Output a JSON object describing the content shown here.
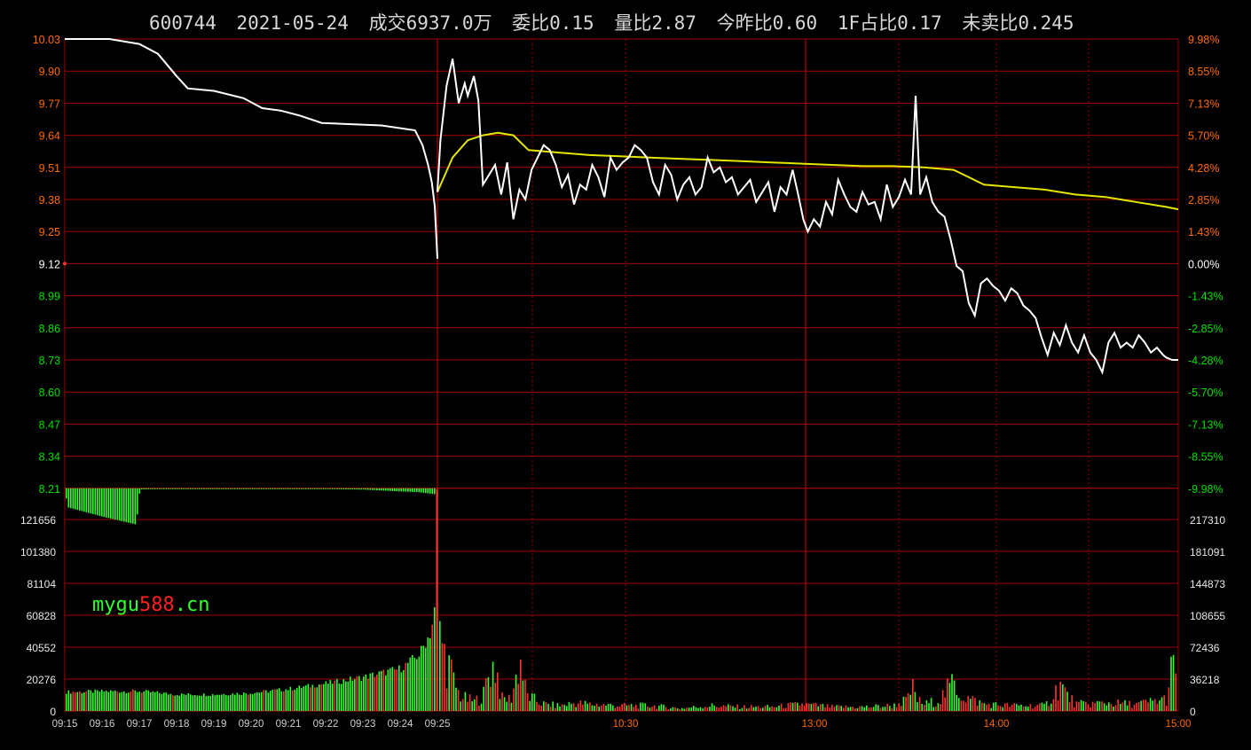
{
  "header": {
    "code": "600744",
    "date": "2021-05-24",
    "turnover": "成交6937.0万",
    "commission_ratio": "委比0.15",
    "volume_ratio": "量比2.87",
    "today_vs_yesterday": "今昨比0.60",
    "first_share": "1F占比0.17",
    "unsold_ratio": "未卖比0.245"
  },
  "watermark": {
    "part1": "mygu",
    "part2": "588",
    "part3": ".cn"
  },
  "colors": {
    "background": "#000000",
    "grid": "#a00000",
    "price_line": "#ffffff",
    "avg_line": "#e6e600",
    "up": "#ff3232",
    "down": "#32ff32",
    "up_label": "#ff6a00",
    "down_label": "#00e000",
    "neutral_label": "#ffffff"
  },
  "chart_data": {
    "type": "line",
    "prev_close": 9.12,
    "price_axis": {
      "left_labels": [
        "10.03",
        "9.90",
        "9.77",
        "9.64",
        "9.51",
        "9.38",
        "9.25",
        "9.12",
        "8.99",
        "8.86",
        "8.73",
        "8.60",
        "8.47",
        "8.34",
        "8.21"
      ],
      "right_labels": [
        "9.98%",
        "8.55%",
        "7.13%",
        "5.70%",
        "4.28%",
        "2.85%",
        "1.43%",
        "0.00%",
        "-1.43%",
        "-2.85%",
        "-4.28%",
        "-5.70%",
        "-7.13%",
        "-8.55%",
        "-9.98%"
      ],
      "ylim": [
        8.21,
        10.03
      ]
    },
    "volume_axis": {
      "left_labels": [
        "121656",
        "101380",
        "81104",
        "60828",
        "40552",
        "20276",
        "0"
      ],
      "right_labels": [
        "217310",
        "181091",
        "144873",
        "108655",
        "72436",
        "36218",
        "0"
      ],
      "ylim_left": [
        0,
        141932
      ]
    },
    "x_axis": {
      "auction_labels": [
        "09:15",
        "09:16",
        "09:17",
        "09:18",
        "09:19",
        "09:20",
        "09:21",
        "09:22",
        "09:23",
        "09:24",
        "09:25"
      ],
      "session_labels": [
        "10:30",
        "13:00",
        "14:00",
        "15:00"
      ]
    },
    "auction_price": [
      [
        0,
        10.03
      ],
      [
        1.2,
        10.03
      ],
      [
        2,
        10.01
      ],
      [
        2.5,
        9.97
      ],
      [
        3,
        9.88
      ],
      [
        3.3,
        9.83
      ],
      [
        4,
        9.82
      ],
      [
        4.8,
        9.79
      ],
      [
        5.3,
        9.75
      ],
      [
        5.8,
        9.74
      ],
      [
        6.3,
        9.72
      ],
      [
        6.9,
        9.69
      ],
      [
        8.5,
        9.68
      ],
      [
        9.4,
        9.66
      ],
      [
        9.6,
        9.6
      ],
      [
        9.75,
        9.52
      ],
      [
        9.85,
        9.45
      ],
      [
        9.93,
        9.35
      ],
      [
        10,
        9.14
      ]
    ],
    "auction_volume_left": [
      [
        0,
        12000
      ],
      [
        1,
        12500
      ],
      [
        2,
        12500
      ],
      [
        3,
        10500
      ],
      [
        4,
        10500
      ],
      [
        5,
        11500
      ],
      [
        6,
        14000
      ],
      [
        7,
        17500
      ],
      [
        8,
        21500
      ],
      [
        9,
        27000
      ],
      [
        9.5,
        36000
      ],
      [
        9.8,
        50000
      ],
      [
        9.9,
        62000
      ],
      [
        10,
        85000
      ]
    ],
    "auction_unmatched": [
      [
        0,
        -1500
      ],
      [
        0.05,
        -12000
      ],
      [
        1,
        -18000
      ],
      [
        1.9,
        -23000
      ],
      [
        2,
        -700
      ],
      [
        3,
        -400
      ],
      [
        4,
        -400
      ],
      [
        5,
        -500
      ],
      [
        6,
        -400
      ],
      [
        7,
        -500
      ],
      [
        8,
        -800
      ],
      [
        9,
        -2000
      ],
      [
        9.5,
        -2500
      ],
      [
        10,
        -4000
      ]
    ],
    "session_price": [
      [
        0,
        9.41
      ],
      [
        2,
        9.62
      ],
      [
        6,
        9.84
      ],
      [
        10,
        9.95
      ],
      [
        14,
        9.77
      ],
      [
        18,
        9.85
      ],
      [
        20,
        9.8
      ],
      [
        24,
        9.88
      ],
      [
        27,
        9.78
      ],
      [
        30,
        9.44
      ],
      [
        34,
        9.48
      ],
      [
        38,
        9.52
      ],
      [
        42,
        9.4
      ],
      [
        46,
        9.53
      ],
      [
        50,
        9.3
      ],
      [
        54,
        9.42
      ],
      [
        58,
        9.38
      ],
      [
        62,
        9.5
      ],
      [
        66,
        9.55
      ],
      [
        70,
        9.6
      ],
      [
        74,
        9.58
      ],
      [
        78,
        9.52
      ],
      [
        82,
        9.43
      ],
      [
        86,
        9.48
      ],
      [
        90,
        9.36
      ],
      [
        94,
        9.44
      ],
      [
        98,
        9.42
      ],
      [
        102,
        9.52
      ],
      [
        106,
        9.47
      ],
      [
        110,
        9.39
      ],
      [
        114,
        9.55
      ],
      [
        118,
        9.5
      ],
      [
        122,
        9.53
      ],
      [
        126,
        9.55
      ],
      [
        130,
        9.6
      ],
      [
        134,
        9.58
      ],
      [
        138,
        9.55
      ],
      [
        142,
        9.45
      ],
      [
        146,
        9.4
      ],
      [
        150,
        9.52
      ],
      [
        154,
        9.48
      ],
      [
        158,
        9.38
      ],
      [
        162,
        9.44
      ],
      [
        166,
        9.47
      ],
      [
        170,
        9.4
      ],
      [
        174,
        9.43
      ],
      [
        178,
        9.55
      ],
      [
        182,
        9.49
      ],
      [
        186,
        9.51
      ],
      [
        190,
        9.45
      ],
      [
        194,
        9.47
      ],
      [
        198,
        9.4
      ],
      [
        202,
        9.43
      ],
      [
        206,
        9.46
      ],
      [
        210,
        9.37
      ],
      [
        214,
        9.41
      ],
      [
        218,
        9.45
      ],
      [
        222,
        9.33
      ],
      [
        226,
        9.43
      ],
      [
        230,
        9.4
      ],
      [
        234,
        9.5
      ],
      [
        238,
        9.39
      ],
      [
        241,
        9.3
      ],
      [
        244,
        9.25
      ],
      [
        248,
        9.3
      ],
      [
        252,
        9.27
      ],
      [
        256,
        9.37
      ],
      [
        260,
        9.32
      ],
      [
        264,
        9.46
      ],
      [
        268,
        9.4
      ],
      [
        272,
        9.35
      ],
      [
        276,
        9.33
      ],
      [
        280,
        9.41
      ],
      [
        284,
        9.36
      ],
      [
        288,
        9.37
      ],
      [
        292,
        9.3
      ],
      [
        296,
        9.44
      ],
      [
        300,
        9.35
      ],
      [
        304,
        9.39
      ],
      [
        308,
        9.46
      ],
      [
        312,
        9.4
      ],
      [
        315,
        9.8
      ],
      [
        318,
        9.4
      ],
      [
        322,
        9.47
      ],
      [
        326,
        9.37
      ],
      [
        330,
        9.33
      ],
      [
        334,
        9.31
      ],
      [
        338,
        9.22
      ],
      [
        342,
        9.11
      ],
      [
        346,
        9.09
      ],
      [
        350,
        8.96
      ],
      [
        354,
        8.91
      ],
      [
        358,
        9.04
      ],
      [
        362,
        9.06
      ],
      [
        366,
        9.03
      ],
      [
        370,
        9.01
      ],
      [
        374,
        8.97
      ],
      [
        378,
        9.02
      ],
      [
        382,
        9.0
      ],
      [
        386,
        8.95
      ],
      [
        390,
        8.93
      ],
      [
        394,
        8.9
      ],
      [
        398,
        8.82
      ],
      [
        402,
        8.75
      ],
      [
        406,
        8.84
      ],
      [
        410,
        8.79
      ],
      [
        414,
        8.87
      ],
      [
        418,
        8.8
      ],
      [
        422,
        8.76
      ],
      [
        426,
        8.83
      ],
      [
        430,
        8.76
      ],
      [
        434,
        8.73
      ],
      [
        438,
        8.68
      ],
      [
        442,
        8.8
      ],
      [
        446,
        8.84
      ],
      [
        450,
        8.78
      ],
      [
        454,
        8.8
      ],
      [
        458,
        8.78
      ],
      [
        462,
        8.83
      ],
      [
        466,
        8.8
      ],
      [
        470,
        8.76
      ],
      [
        474,
        8.78
      ],
      [
        478,
        8.75
      ],
      [
        480,
        8.74
      ],
      [
        484,
        8.73
      ],
      [
        488,
        8.73
      ]
    ],
    "session_avg": [
      [
        0,
        9.41
      ],
      [
        10,
        9.55
      ],
      [
        20,
        9.62
      ],
      [
        30,
        9.64
      ],
      [
        40,
        9.65
      ],
      [
        50,
        9.64
      ],
      [
        60,
        9.58
      ],
      [
        80,
        9.57
      ],
      [
        100,
        9.56
      ],
      [
        120,
        9.555
      ],
      [
        140,
        9.55
      ],
      [
        160,
        9.545
      ],
      [
        180,
        9.54
      ],
      [
        200,
        9.535
      ],
      [
        220,
        9.53
      ],
      [
        240,
        9.525
      ],
      [
        260,
        9.52
      ],
      [
        280,
        9.515
      ],
      [
        300,
        9.515
      ],
      [
        320,
        9.51
      ],
      [
        340,
        9.5
      ],
      [
        350,
        9.47
      ],
      [
        360,
        9.44
      ],
      [
        380,
        9.43
      ],
      [
        400,
        9.42
      ],
      [
        420,
        9.4
      ],
      [
        440,
        9.39
      ],
      [
        460,
        9.37
      ],
      [
        480,
        9.35
      ],
      [
        488,
        9.34
      ]
    ],
    "session_volume_left": [
      [
        0,
        48000
      ],
      [
        2,
        55000
      ],
      [
        4,
        42000
      ],
      [
        6,
        38000
      ],
      [
        8,
        30000
      ],
      [
        10,
        22000
      ],
      [
        14,
        12000
      ],
      [
        18,
        9000
      ],
      [
        24,
        7000
      ],
      [
        30,
        12000
      ],
      [
        34,
        31000
      ],
      [
        38,
        34000
      ],
      [
        42,
        9000
      ],
      [
        48,
        9000
      ],
      [
        52,
        28000
      ],
      [
        54,
        40000
      ],
      [
        58,
        12000
      ],
      [
        62,
        9000
      ],
      [
        70,
        5000
      ],
      [
        80,
        4000
      ],
      [
        90,
        6000
      ],
      [
        100,
        5000
      ],
      [
        120,
        4000
      ],
      [
        140,
        4000
      ],
      [
        160,
        2000
      ],
      [
        180,
        4000
      ],
      [
        200,
        3000
      ],
      [
        220,
        3000
      ],
      [
        240,
        5000
      ],
      [
        260,
        3000
      ],
      [
        280,
        3000
      ],
      [
        300,
        4000
      ],
      [
        310,
        9000
      ],
      [
        312,
        18000
      ],
      [
        316,
        8000
      ],
      [
        320,
        5000
      ],
      [
        330,
        8000
      ],
      [
        340,
        22000
      ],
      [
        344,
        12000
      ],
      [
        350,
        9000
      ],
      [
        360,
        5000
      ],
      [
        380,
        4000
      ],
      [
        400,
        4000
      ],
      [
        410,
        20000
      ],
      [
        414,
        12000
      ],
      [
        420,
        5000
      ],
      [
        440,
        6000
      ],
      [
        460,
        5000
      ],
      [
        480,
        9000
      ],
      [
        484,
        35000
      ],
      [
        486,
        20000
      ],
      [
        488,
        9000
      ]
    ]
  }
}
